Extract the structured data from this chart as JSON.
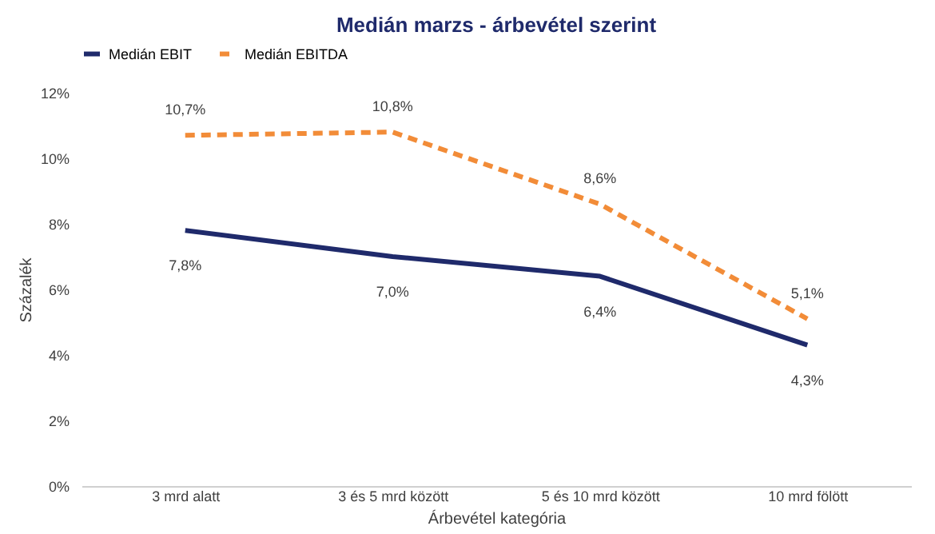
{
  "chart_data": {
    "type": "line",
    "title": "Medián marzs - árbevétel szerint",
    "xlabel": "Árbevétel kategória",
    "ylabel": "Százalék",
    "categories": [
      "3 mrd alatt",
      "3 és 5 mrd között",
      "5 és 10 mrd között",
      "10 mrd fölött"
    ],
    "series": [
      {
        "name": "Medián EBIT",
        "color": "#1f2a6b",
        "line_style": "solid",
        "values": [
          7.8,
          7.0,
          6.4,
          4.3
        ],
        "value_labels": [
          "7,8%",
          "7,0%",
          "6,4%",
          "4,3%"
        ]
      },
      {
        "name": "Medián EBITDA",
        "color": "#f28c38",
        "line_style": "dashed",
        "values": [
          10.7,
          10.8,
          8.6,
          5.1
        ],
        "value_labels": [
          "10,7%",
          "10,8%",
          "8,6%",
          "5,1%"
        ]
      }
    ],
    "ylim": [
      0,
      12
    ],
    "yticks": [
      {
        "value": 0,
        "label": "0%"
      },
      {
        "value": 2,
        "label": "2%"
      },
      {
        "value": 4,
        "label": "4%"
      },
      {
        "value": 6,
        "label": "6%"
      },
      {
        "value": 8,
        "label": "8%"
      },
      {
        "value": 10,
        "label": "10%"
      },
      {
        "value": 12,
        "label": "12%"
      }
    ],
    "grid": false,
    "legend": "top",
    "marker": "none"
  }
}
